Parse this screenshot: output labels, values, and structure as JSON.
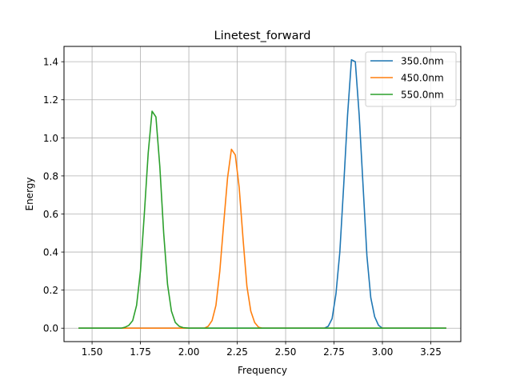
{
  "chart_data": {
    "type": "line",
    "title": "Linetest_forward",
    "xlabel": "Frequency",
    "ylabel": "Energy",
    "xlim": [
      1.355,
      3.405
    ],
    "ylim": [
      -0.0705,
      1.4805
    ],
    "xticks": [
      1.5,
      1.75,
      2.0,
      2.25,
      2.5,
      2.75,
      3.0,
      3.25
    ],
    "xtick_labels": [
      "1.50",
      "1.75",
      "2.00",
      "2.25",
      "2.50",
      "2.75",
      "3.00",
      "3.25"
    ],
    "yticks": [
      0.0,
      0.2,
      0.4,
      0.6,
      0.8,
      1.0,
      1.2,
      1.4
    ],
    "ytick_labels": [
      "0.0",
      "0.2",
      "0.4",
      "0.6",
      "0.8",
      "1.0",
      "1.2",
      "1.4"
    ],
    "grid": true,
    "legend_position": "top-right",
    "series": [
      {
        "name": "350.0nm",
        "color": "#1f77b4",
        "x": [
          1.43,
          2.7,
          2.72,
          2.74,
          2.76,
          2.78,
          2.8,
          2.82,
          2.84,
          2.86,
          2.88,
          2.9,
          2.92,
          2.94,
          2.96,
          2.98,
          3.0,
          3.02,
          3.33
        ],
        "y": [
          0.0,
          0.0,
          0.01,
          0.05,
          0.18,
          0.4,
          0.75,
          1.12,
          1.41,
          1.4,
          1.12,
          0.75,
          0.38,
          0.16,
          0.06,
          0.015,
          0.0,
          0.0,
          0.0
        ]
      },
      {
        "name": "450.0nm",
        "color": "#ff7f0e",
        "x": [
          1.43,
          2.08,
          2.1,
          2.12,
          2.14,
          2.16,
          2.18,
          2.2,
          2.22,
          2.24,
          2.26,
          2.28,
          2.3,
          2.32,
          2.34,
          2.36,
          2.38,
          3.33
        ],
        "y": [
          0.0,
          0.0,
          0.01,
          0.04,
          0.12,
          0.3,
          0.55,
          0.79,
          0.94,
          0.91,
          0.74,
          0.47,
          0.22,
          0.09,
          0.03,
          0.005,
          0.0,
          0.0
        ]
      },
      {
        "name": "550.0nm",
        "color": "#2ca02c",
        "x": [
          1.43,
          1.65,
          1.67,
          1.69,
          1.71,
          1.73,
          1.75,
          1.77,
          1.79,
          1.81,
          1.83,
          1.85,
          1.87,
          1.89,
          1.91,
          1.93,
          1.95,
          1.97,
          2.0,
          3.33
        ],
        "y": [
          0.0,
          0.0,
          0.005,
          0.015,
          0.04,
          0.12,
          0.3,
          0.6,
          0.92,
          1.14,
          1.11,
          0.85,
          0.5,
          0.23,
          0.09,
          0.03,
          0.01,
          0.003,
          0.0,
          0.0
        ]
      }
    ]
  }
}
